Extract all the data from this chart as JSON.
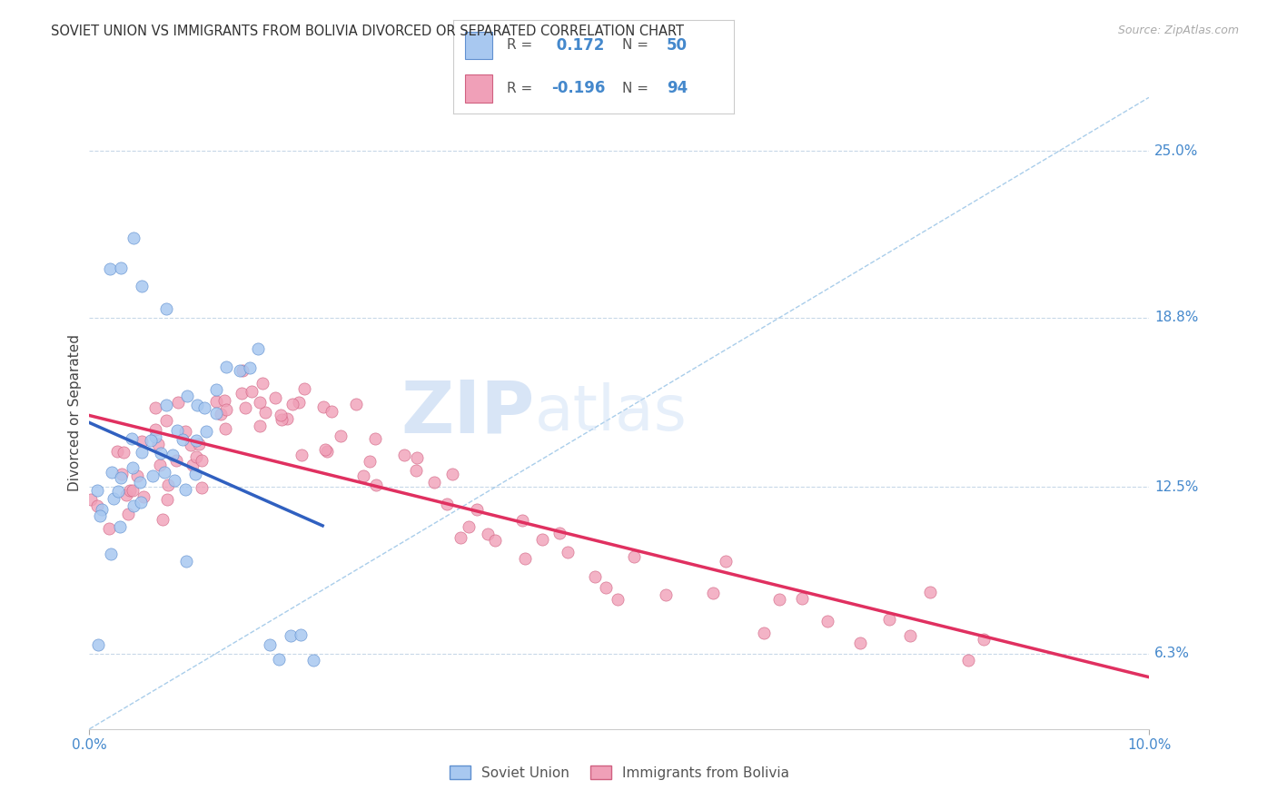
{
  "title": "SOVIET UNION VS IMMIGRANTS FROM BOLIVIA DIVORCED OR SEPARATED CORRELATION CHART",
  "source": "Source: ZipAtlas.com",
  "ylabel_ticks": [
    "6.3%",
    "12.5%",
    "18.8%",
    "25.0%"
  ],
  "ylabel_tick_vals": [
    0.063,
    0.125,
    0.188,
    0.25
  ],
  "ylabel_label": "Divorced or Separated",
  "legend_bottom": [
    "Soviet Union",
    "Immigrants from Bolivia"
  ],
  "watermark_zip": "ZIP",
  "watermark_atlas": "atlas",
  "r1": 0.172,
  "n1": 50,
  "r2": -0.196,
  "n2": 94,
  "blue_fill": "#A8C8F0",
  "blue_edge": "#6090D0",
  "pink_fill": "#F0A0B8",
  "pink_edge": "#D06080",
  "blue_line": "#3060C0",
  "pink_line": "#E03060",
  "dashed_color": "#A0C8E8",
  "axis_label_color": "#4488CC",
  "grid_color": "#C8D8E8",
  "x_min": 0.0,
  "x_max": 0.1,
  "y_min": 0.035,
  "y_max": 0.27,
  "su_x": [
    0.001,
    0.001,
    0.001,
    0.002,
    0.002,
    0.002,
    0.003,
    0.003,
    0.003,
    0.004,
    0.004,
    0.004,
    0.005,
    0.005,
    0.005,
    0.006,
    0.006,
    0.006,
    0.007,
    0.007,
    0.007,
    0.008,
    0.008,
    0.008,
    0.009,
    0.009,
    0.009,
    0.01,
    0.01,
    0.01,
    0.011,
    0.011,
    0.012,
    0.012,
    0.013,
    0.014,
    0.015,
    0.016,
    0.017,
    0.018,
    0.019,
    0.02,
    0.021,
    0.002,
    0.003,
    0.004,
    0.005,
    0.007,
    0.001,
    0.009
  ],
  "su_y": [
    0.125,
    0.118,
    0.112,
    0.13,
    0.122,
    0.108,
    0.135,
    0.12,
    0.11,
    0.14,
    0.125,
    0.115,
    0.145,
    0.13,
    0.118,
    0.148,
    0.135,
    0.122,
    0.15,
    0.138,
    0.125,
    0.152,
    0.14,
    0.128,
    0.155,
    0.143,
    0.13,
    0.158,
    0.145,
    0.133,
    0.16,
    0.147,
    0.162,
    0.148,
    0.165,
    0.168,
    0.17,
    0.172,
    0.06,
    0.058,
    0.065,
    0.063,
    0.068,
    0.2,
    0.21,
    0.218,
    0.195,
    0.188,
    0.072,
    0.095
  ],
  "bo_x": [
    0.001,
    0.001,
    0.002,
    0.002,
    0.003,
    0.003,
    0.003,
    0.004,
    0.004,
    0.004,
    0.005,
    0.005,
    0.005,
    0.006,
    0.006,
    0.006,
    0.007,
    0.007,
    0.007,
    0.008,
    0.008,
    0.008,
    0.009,
    0.009,
    0.009,
    0.01,
    0.01,
    0.01,
    0.011,
    0.011,
    0.011,
    0.012,
    0.012,
    0.013,
    0.013,
    0.014,
    0.014,
    0.015,
    0.015,
    0.016,
    0.016,
    0.017,
    0.017,
    0.018,
    0.018,
    0.019,
    0.019,
    0.02,
    0.02,
    0.021,
    0.021,
    0.022,
    0.022,
    0.023,
    0.023,
    0.024,
    0.025,
    0.025,
    0.026,
    0.027,
    0.028,
    0.029,
    0.03,
    0.031,
    0.032,
    0.033,
    0.034,
    0.035,
    0.036,
    0.037,
    0.038,
    0.039,
    0.04,
    0.042,
    0.044,
    0.046,
    0.048,
    0.05,
    0.055,
    0.06,
    0.065,
    0.07,
    0.075,
    0.08,
    0.085,
    0.043,
    0.049,
    0.052,
    0.058,
    0.063,
    0.068,
    0.073,
    0.078,
    0.083
  ],
  "bo_y": [
    0.125,
    0.118,
    0.13,
    0.112,
    0.135,
    0.12,
    0.11,
    0.138,
    0.125,
    0.115,
    0.14,
    0.128,
    0.118,
    0.142,
    0.13,
    0.12,
    0.145,
    0.132,
    0.122,
    0.148,
    0.135,
    0.125,
    0.15,
    0.138,
    0.128,
    0.152,
    0.14,
    0.13,
    0.155,
    0.143,
    0.133,
    0.158,
    0.148,
    0.16,
    0.15,
    0.162,
    0.152,
    0.165,
    0.155,
    0.16,
    0.15,
    0.162,
    0.152,
    0.158,
    0.148,
    0.155,
    0.145,
    0.158,
    0.148,
    0.155,
    0.145,
    0.152,
    0.142,
    0.148,
    0.138,
    0.145,
    0.148,
    0.138,
    0.142,
    0.138,
    0.135,
    0.132,
    0.13,
    0.128,
    0.125,
    0.122,
    0.12,
    0.118,
    0.115,
    0.112,
    0.11,
    0.108,
    0.105,
    0.102,
    0.1,
    0.098,
    0.095,
    0.092,
    0.09,
    0.088,
    0.085,
    0.082,
    0.08,
    0.078,
    0.075,
    0.1,
    0.095,
    0.09,
    0.085,
    0.08,
    0.075,
    0.07,
    0.065,
    0.06
  ]
}
